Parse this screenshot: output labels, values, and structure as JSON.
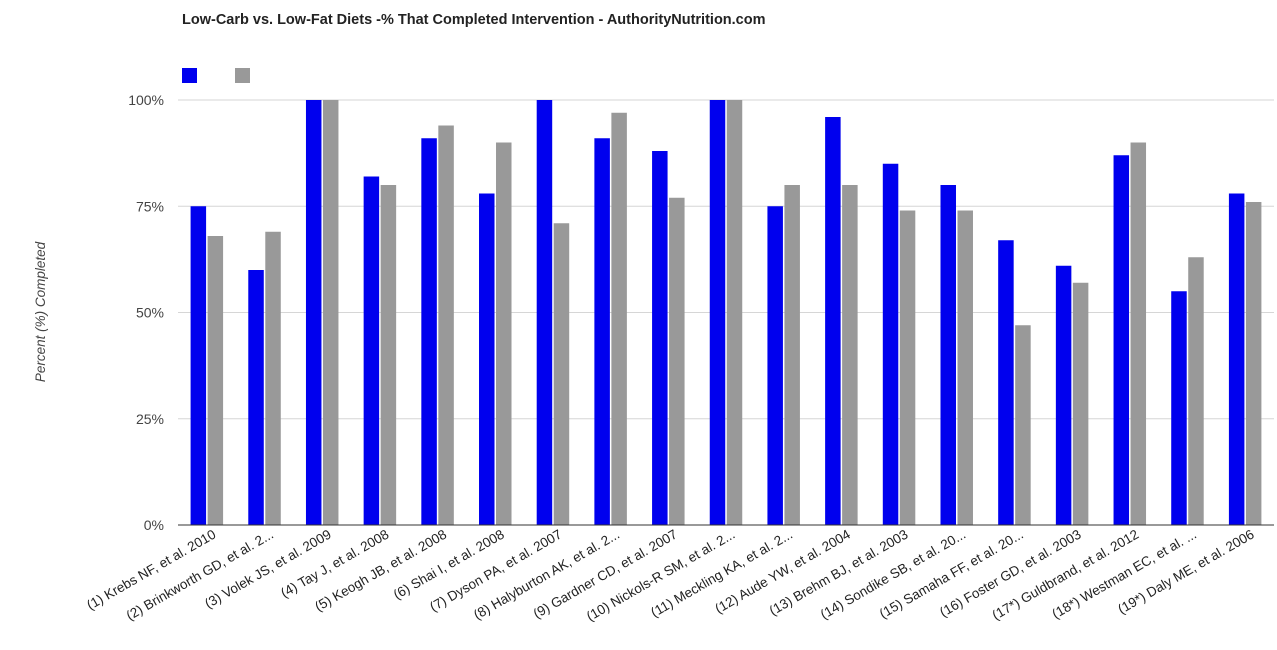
{
  "chart_data": {
    "type": "bar",
    "title": "Low-Carb vs. Low-Fat Diets -% That Completed Intervention - AuthorityNutrition.com",
    "ylabel": "Percent (%) Completed",
    "xlabel": "",
    "ylim": [
      0,
      100
    ],
    "yticks": [
      "0%",
      "25%",
      "50%",
      "75%",
      "100%"
    ],
    "ytick_values": [
      0,
      25,
      50,
      75,
      100
    ],
    "grid": true,
    "legend": "top-left",
    "categories": [
      "(1) Krebs NF, et al. 2010",
      "(2) Brinkworth GD, et al. 2...",
      "(3) Volek JS, et al. 2009",
      "(4) Tay J, et al. 2008",
      "(5) Keogh JB, et al. 2008",
      "(6) Shai I, et al. 2008",
      "(7) Dyson PA, et al. 2007",
      "(8) Halyburton AK, et al. 2...",
      "(9) Gardner CD, et al. 2007",
      "(10) Nickols-R SM, et al. 2...",
      "(11) Meckling KA, et al. 2...",
      "(12) Aude YW, et al. 2004",
      "(13) Brehm BJ, et al. 2003",
      "(14) Sondike SB, et al. 20...",
      "(15) Samaha FF, et al. 20...",
      "(16) Foster GD, et al. 2003",
      "(17*) Guldbrand, et al. 2012",
      "(18*) Westman EC, et al. ...",
      "(19*) Daly ME, et al. 2006"
    ],
    "series": [
      {
        "color": "#0000ee",
        "values": [
          75,
          60,
          100,
          82,
          91,
          78,
          100,
          91,
          88,
          100,
          75,
          96,
          85,
          80,
          67,
          61,
          87,
          55,
          78
        ]
      },
      {
        "color": "#999999",
        "values": [
          68,
          69,
          100,
          80,
          94,
          90,
          71,
          97,
          77,
          100,
          80,
          80,
          74,
          74,
          47,
          57,
          90,
          63,
          76
        ]
      }
    ]
  }
}
